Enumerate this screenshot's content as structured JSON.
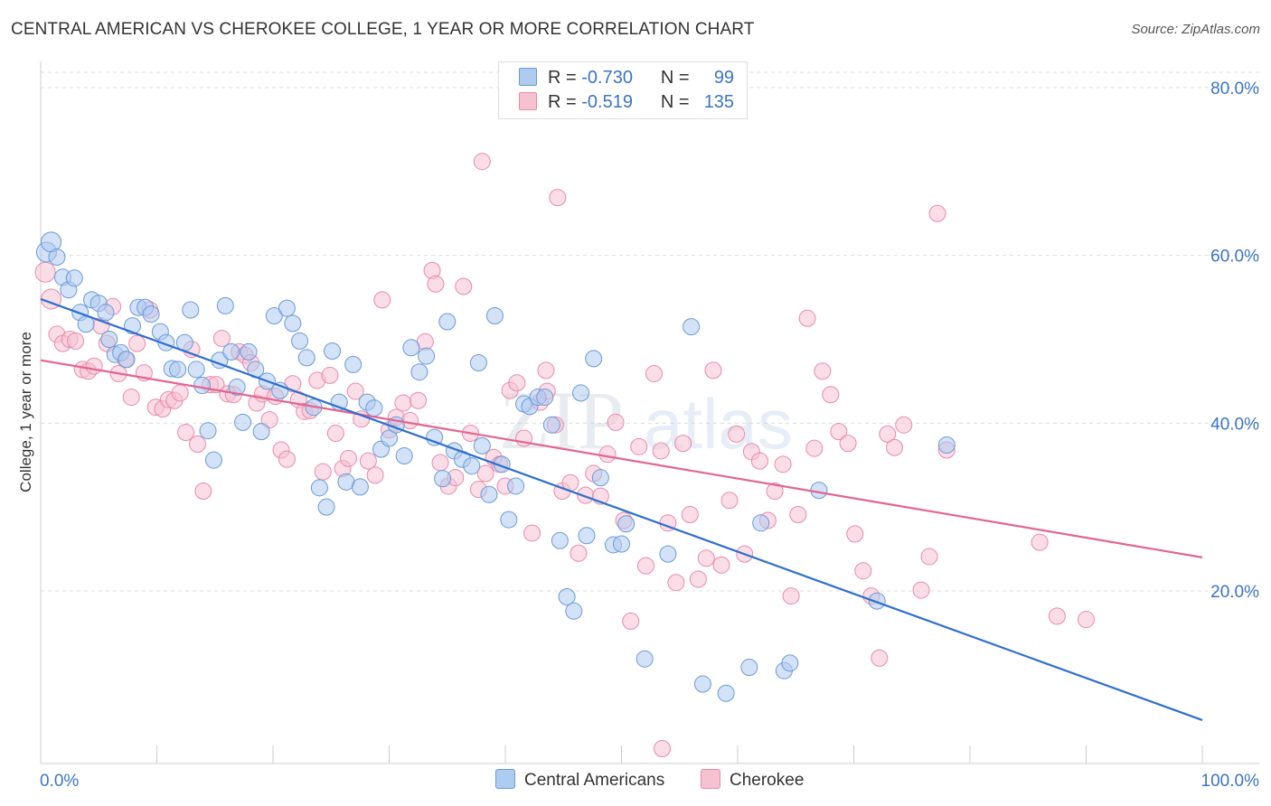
{
  "title": "CENTRAL AMERICAN VS CHEROKEE COLLEGE, 1 YEAR OR MORE CORRELATION CHART",
  "source": "Source: ZipAtlas.com",
  "watermark": {
    "zip": "ZIP",
    "atlas": "atlas"
  },
  "legend": {
    "r_label": "R =",
    "n_label": "N =",
    "series": [
      {
        "r": "-0.730",
        "n": "99"
      },
      {
        "r": "-0.519",
        "n": "135"
      }
    ]
  },
  "colors": {
    "blue_fill": "#aecbf0",
    "blue_stroke": "#6a9ad8",
    "blue_line": "#2e6fcf",
    "pink_fill": "#f6c1d1",
    "pink_stroke": "#e98aab",
    "pink_line": "#e2658f"
  },
  "chart_data": {
    "type": "scatter",
    "title": "CENTRAL AMERICAN VS CHEROKEE COLLEGE, 1 YEAR OR MORE CORRELATION CHART",
    "xlabel": "",
    "ylabel": "College, 1 year or more",
    "xlim": [
      0,
      100
    ],
    "ylim": [
      0,
      82
    ],
    "x_tick_labels": [
      "0.0%",
      "100.0%"
    ],
    "y_ticks": [
      20,
      40,
      60,
      80
    ],
    "y_tick_labels": [
      "20.0%",
      "40.0%",
      "60.0%",
      "80.0%"
    ],
    "grid": true,
    "legend_position": "top-center",
    "series": [
      {
        "name": "Central Americans",
        "trend": {
          "x0": 0,
          "y0": 54.8,
          "x1": 100,
          "y1": 4.6
        },
        "points": [
          [
            0.5,
            60.4
          ],
          [
            0.9,
            61.6
          ],
          [
            1.4,
            59.8
          ],
          [
            1.9,
            57.4
          ],
          [
            2.4,
            55.9
          ],
          [
            2.9,
            57.3
          ],
          [
            3.4,
            53.2
          ],
          [
            3.9,
            51.8
          ],
          [
            4.4,
            54.7
          ],
          [
            5.0,
            54.3
          ],
          [
            5.6,
            53.2
          ],
          [
            5.9,
            50.0
          ],
          [
            6.4,
            48.2
          ],
          [
            6.9,
            48.4
          ],
          [
            7.4,
            47.6
          ],
          [
            7.9,
            51.6
          ],
          [
            8.4,
            53.8
          ],
          [
            9.0,
            53.8
          ],
          [
            9.5,
            53.0
          ],
          [
            10.3,
            50.9
          ],
          [
            10.8,
            49.6
          ],
          [
            11.3,
            46.5
          ],
          [
            11.8,
            46.4
          ],
          [
            12.4,
            49.6
          ],
          [
            12.9,
            53.5
          ],
          [
            13.4,
            46.4
          ],
          [
            13.9,
            44.5
          ],
          [
            14.4,
            39.1
          ],
          [
            14.9,
            35.6
          ],
          [
            15.4,
            47.5
          ],
          [
            15.9,
            54.0
          ],
          [
            16.4,
            48.5
          ],
          [
            16.9,
            44.3
          ],
          [
            17.4,
            40.1
          ],
          [
            17.9,
            48.5
          ],
          [
            18.5,
            46.4
          ],
          [
            19.0,
            39.0
          ],
          [
            19.5,
            45.0
          ],
          [
            20.1,
            52.8
          ],
          [
            20.6,
            43.9
          ],
          [
            21.2,
            53.7
          ],
          [
            21.7,
            51.9
          ],
          [
            22.3,
            49.8
          ],
          [
            22.9,
            47.8
          ],
          [
            23.5,
            41.9
          ],
          [
            24.0,
            32.3
          ],
          [
            24.6,
            30.0
          ],
          [
            25.1,
            48.6
          ],
          [
            25.7,
            42.5
          ],
          [
            26.3,
            33.0
          ],
          [
            26.9,
            47.0
          ],
          [
            27.5,
            32.4
          ],
          [
            28.1,
            42.5
          ],
          [
            28.7,
            41.8
          ],
          [
            29.3,
            36.9
          ],
          [
            30.0,
            38.2
          ],
          [
            30.6,
            39.8
          ],
          [
            31.3,
            36.1
          ],
          [
            31.9,
            49.0
          ],
          [
            32.6,
            46.1
          ],
          [
            33.2,
            48.0
          ],
          [
            33.9,
            38.3
          ],
          [
            34.6,
            33.4
          ],
          [
            35.0,
            52.1
          ],
          [
            35.6,
            36.7
          ],
          [
            36.3,
            35.7
          ],
          [
            37.1,
            34.9
          ],
          [
            37.7,
            47.2
          ],
          [
            38.0,
            37.3
          ],
          [
            38.6,
            31.5
          ],
          [
            39.1,
            52.8
          ],
          [
            39.7,
            35.1
          ],
          [
            40.3,
            28.5
          ],
          [
            40.9,
            32.5
          ],
          [
            41.6,
            42.3
          ],
          [
            42.1,
            42.0
          ],
          [
            42.8,
            43.1
          ],
          [
            43.4,
            43.1
          ],
          [
            44.0,
            39.8
          ],
          [
            44.7,
            26.0
          ],
          [
            45.3,
            19.3
          ],
          [
            45.9,
            17.6
          ],
          [
            46.5,
            43.6
          ],
          [
            47.0,
            26.6
          ],
          [
            47.6,
            47.7
          ],
          [
            48.2,
            33.5
          ],
          [
            49.3,
            25.5
          ],
          [
            50.4,
            28.0
          ],
          [
            50.0,
            25.6
          ],
          [
            52.0,
            11.9
          ],
          [
            54.0,
            24.4
          ],
          [
            56.0,
            51.5
          ],
          [
            57.0,
            8.9
          ],
          [
            59.0,
            7.8
          ],
          [
            61.0,
            10.9
          ],
          [
            62.0,
            28.1
          ],
          [
            64.0,
            10.5
          ],
          [
            64.5,
            11.4
          ],
          [
            67.0,
            32.0
          ],
          [
            72.0,
            18.8
          ],
          [
            78.0,
            37.4
          ]
        ]
      },
      {
        "name": "Cherokee",
        "trend": {
          "x0": 0,
          "y0": 47.5,
          "x1": 100,
          "y1": 24.0
        },
        "points": [
          [
            0.4,
            58.0
          ],
          [
            0.9,
            54.8
          ],
          [
            1.4,
            50.6
          ],
          [
            1.9,
            49.5
          ],
          [
            2.5,
            50.0
          ],
          [
            3.0,
            49.8
          ],
          [
            3.6,
            46.4
          ],
          [
            4.1,
            46.2
          ],
          [
            4.6,
            46.8
          ],
          [
            5.2,
            51.6
          ],
          [
            5.7,
            49.5
          ],
          [
            6.2,
            53.9
          ],
          [
            6.7,
            45.9
          ],
          [
            7.3,
            47.6
          ],
          [
            7.8,
            43.1
          ],
          [
            8.3,
            49.5
          ],
          [
            8.9,
            46.0
          ],
          [
            9.4,
            53.5
          ],
          [
            9.9,
            41.9
          ],
          [
            10.5,
            41.7
          ],
          [
            11.0,
            42.8
          ],
          [
            11.5,
            42.7
          ],
          [
            12.0,
            43.6
          ],
          [
            12.5,
            38.9
          ],
          [
            13.0,
            48.8
          ],
          [
            13.5,
            37.5
          ],
          [
            14.0,
            31.9
          ],
          [
            14.6,
            44.6
          ],
          [
            15.1,
            44.6
          ],
          [
            15.6,
            50.1
          ],
          [
            16.1,
            43.5
          ],
          [
            16.6,
            43.4
          ],
          [
            17.1,
            48.5
          ],
          [
            17.6,
            48.1
          ],
          [
            18.1,
            47.2
          ],
          [
            18.6,
            42.4
          ],
          [
            19.1,
            43.5
          ],
          [
            19.7,
            40.4
          ],
          [
            20.2,
            43.2
          ],
          [
            20.7,
            36.8
          ],
          [
            21.2,
            35.7
          ],
          [
            21.7,
            44.7
          ],
          [
            22.2,
            42.8
          ],
          [
            22.7,
            41.4
          ],
          [
            23.2,
            41.5
          ],
          [
            23.8,
            45.1
          ],
          [
            24.3,
            34.2
          ],
          [
            24.9,
            45.7
          ],
          [
            25.4,
            38.8
          ],
          [
            26.0,
            34.6
          ],
          [
            26.5,
            35.8
          ],
          [
            27.1,
            43.8
          ],
          [
            27.6,
            40.5
          ],
          [
            28.2,
            35.5
          ],
          [
            28.8,
            33.8
          ],
          [
            29.4,
            54.7
          ],
          [
            30.0,
            39.2
          ],
          [
            30.6,
            40.7
          ],
          [
            31.2,
            42.4
          ],
          [
            31.8,
            40.3
          ],
          [
            32.5,
            42.7
          ],
          [
            33.1,
            49.7
          ],
          [
            33.7,
            58.2
          ],
          [
            34.4,
            35.3
          ],
          [
            35.1,
            32.5
          ],
          [
            35.7,
            33.5
          ],
          [
            36.4,
            56.3
          ],
          [
            37.0,
            38.8
          ],
          [
            37.7,
            32.1
          ],
          [
            38.3,
            34.0
          ],
          [
            39.0,
            35.9
          ],
          [
            39.5,
            35.1
          ],
          [
            40.4,
            43.9
          ],
          [
            41.0,
            44.8
          ],
          [
            41.6,
            38.2
          ],
          [
            42.3,
            26.9
          ],
          [
            43.0,
            42.5
          ],
          [
            43.6,
            43.8
          ],
          [
            44.3,
            39.8
          ],
          [
            44.9,
            31.9
          ],
          [
            45.6,
            32.9
          ],
          [
            46.3,
            24.5
          ],
          [
            46.9,
            31.4
          ],
          [
            47.6,
            34.0
          ],
          [
            48.2,
            31.3
          ],
          [
            48.8,
            36.3
          ],
          [
            49.5,
            40.1
          ],
          [
            50.2,
            28.4
          ],
          [
            50.8,
            16.4
          ],
          [
            51.5,
            37.2
          ],
          [
            52.1,
            23.0
          ],
          [
            52.8,
            45.9
          ],
          [
            53.4,
            36.7
          ],
          [
            54.0,
            28.1
          ],
          [
            54.7,
            21.0
          ],
          [
            55.3,
            37.6
          ],
          [
            55.9,
            29.1
          ],
          [
            56.6,
            21.4
          ],
          [
            57.3,
            23.9
          ],
          [
            57.9,
            46.3
          ],
          [
            58.6,
            23.1
          ],
          [
            59.3,
            30.8
          ],
          [
            59.9,
            38.7
          ],
          [
            60.6,
            24.4
          ],
          [
            61.2,
            36.6
          ],
          [
            61.9,
            35.5
          ],
          [
            62.6,
            28.4
          ],
          [
            63.2,
            31.9
          ],
          [
            63.9,
            35.1
          ],
          [
            64.6,
            19.4
          ],
          [
            65.2,
            29.1
          ],
          [
            66.0,
            52.5
          ],
          [
            66.6,
            37.0
          ],
          [
            67.3,
            46.2
          ],
          [
            68.0,
            43.4
          ],
          [
            68.7,
            39.0
          ],
          [
            69.5,
            37.6
          ],
          [
            70.1,
            26.8
          ],
          [
            70.8,
            22.4
          ],
          [
            71.5,
            19.4
          ],
          [
            72.2,
            12.0
          ],
          [
            72.9,
            38.7
          ],
          [
            73.5,
            37.1
          ],
          [
            74.3,
            39.8
          ],
          [
            75.8,
            20.1
          ],
          [
            76.5,
            24.1
          ],
          [
            77.2,
            65.0
          ],
          [
            78.0,
            36.8
          ],
          [
            86.0,
            25.8
          ],
          [
            87.5,
            17.0
          ],
          [
            90.0,
            16.6
          ],
          [
            38.0,
            71.2
          ],
          [
            44.5,
            66.9
          ],
          [
            53.5,
            1.2
          ],
          [
            34.0,
            56.6
          ],
          [
            43.5,
            46.3
          ],
          [
            40.0,
            32.5
          ]
        ]
      }
    ]
  },
  "bottom_legend": [
    "Central Americans",
    "Cherokee"
  ]
}
